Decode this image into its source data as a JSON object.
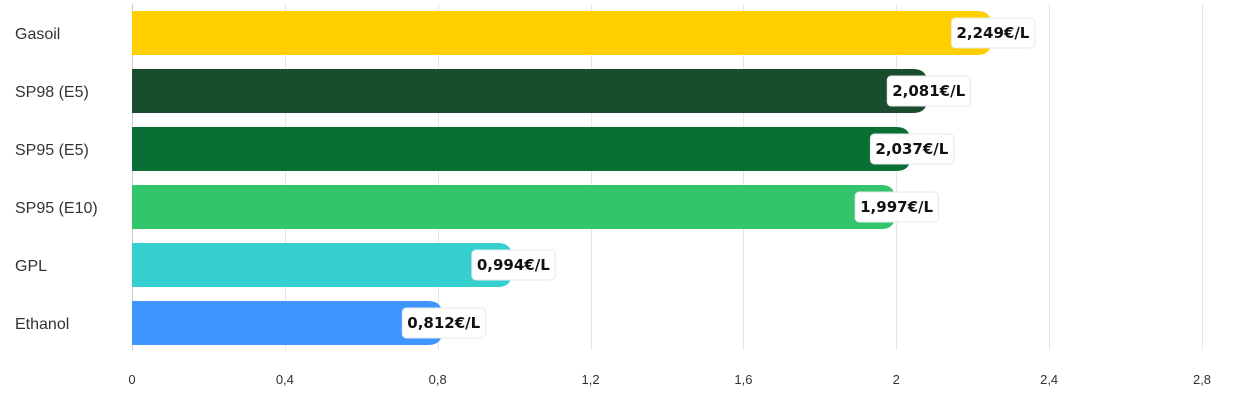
{
  "chart_data": {
    "type": "bar",
    "orientation": "horizontal",
    "title": "",
    "xlabel": "",
    "ylabel": "",
    "categories": [
      "Gasoil",
      "SP98 (E5)",
      "SP95 (E5)",
      "SP95 (E10)",
      "GPL",
      "Ethanol"
    ],
    "values": [
      2.249,
      2.081,
      2.037,
      1.997,
      0.994,
      0.812
    ],
    "value_labels": [
      "2,249€/L",
      "2,081€/L",
      "2,037€/L",
      "1,997€/L",
      "0,994€/L",
      "0,812€/L"
    ],
    "colors": [
      "#ffcf00",
      "#1a4d2e",
      "#087035",
      "#32c56b",
      "#36cfcf",
      "#3f95ff"
    ],
    "xlim": [
      0,
      2.8
    ],
    "x_ticks": [
      0,
      0.4,
      0.8,
      1.2,
      1.6,
      2,
      2.4,
      2.8
    ],
    "x_tick_labels": [
      "0",
      "0,4",
      "0,8",
      "1,2",
      "1,6",
      "2",
      "2,4",
      "2,8"
    ],
    "grid": true,
    "legend": "none"
  }
}
